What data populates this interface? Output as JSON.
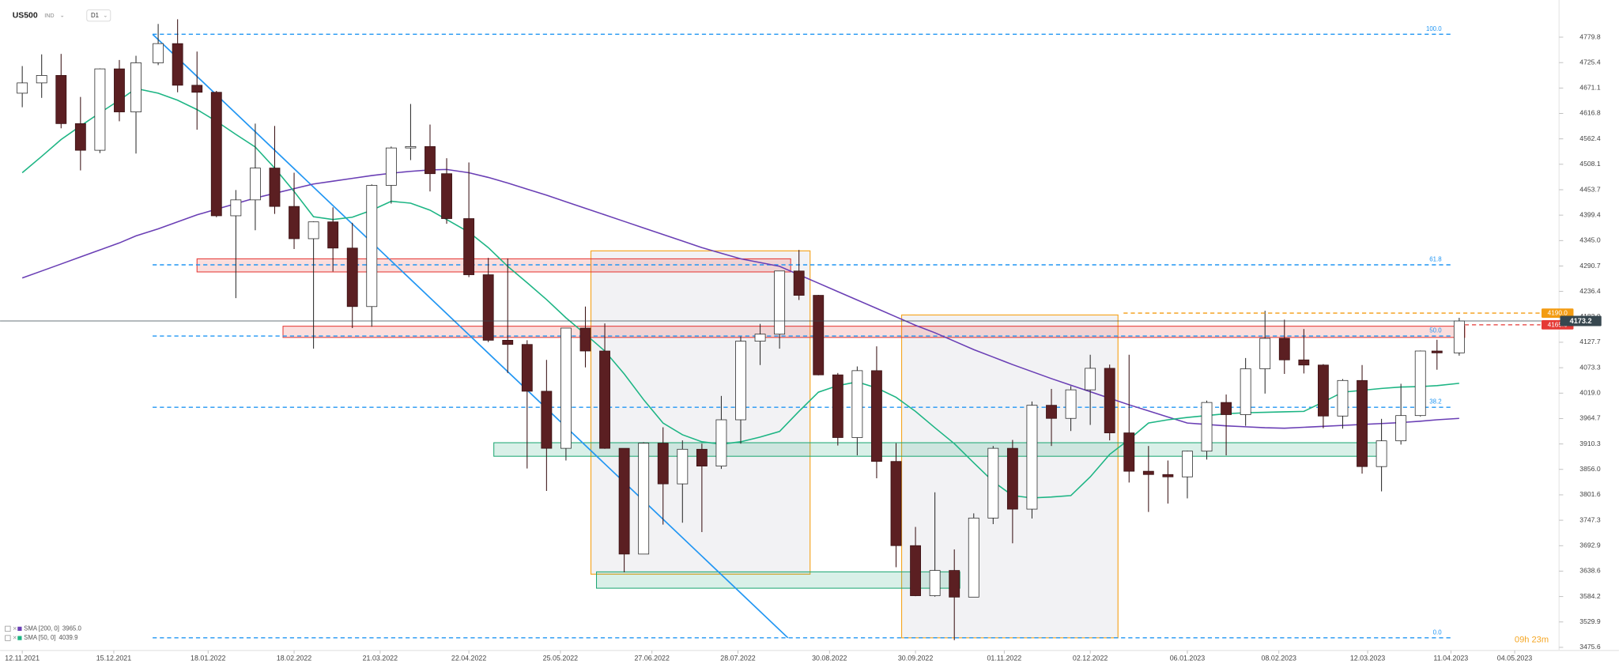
{
  "chart_data": {
    "type": "candlestick",
    "title": "US500",
    "instrument_tag": "IND",
    "timeframe": "D1",
    "countdown": "09h 23m",
    "xlim": [
      "04.11.2021",
      "20.05.2023"
    ],
    "ylim": [
      3469.0,
      4859.2
    ],
    "xticks": [
      "12.11.2021",
      "15.12.2021",
      "18.01.2022",
      "18.02.2022",
      "21.03.2022",
      "22.04.2022",
      "25.05.2022",
      "27.06.2022",
      "28.07.2022",
      "30.08.2022",
      "30.09.2022",
      "01.11.2022",
      "02.12.2022",
      "06.01.2023",
      "08.02.2023",
      "12.03.2023",
      "11.04.2023",
      "04.05.2023"
    ],
    "yticks": [
      4779.8,
      4725.4,
      4671.1,
      4616.8,
      4562.4,
      4508.1,
      4453.7,
      4399.4,
      {
        "value": 4345,
        "label": "4345.0"
      },
      4290.7,
      4236.4,
      {
        "value": 4182,
        "label": "4182.0"
      },
      4127.7,
      4073.3,
      {
        "value": 4019,
        "label": "4019.0"
      },
      3964.7,
      3910.3,
      {
        "value": 3856,
        "label": "3856.0"
      },
      3801.6,
      3747.3,
      3692.9,
      3638.6,
      3584.2,
      3529.9,
      3475.6
    ],
    "candle_colors": {
      "up_fill": "#ffffff",
      "up_stroke": "#2b2b2b",
      "down_fill": "#5b1f22",
      "down_stroke": "#3a1214"
    },
    "x": [
      "12.11.2021",
      "19.11.2021",
      "26.11.2021",
      "03.12.2021",
      "10.12.2021",
      "17.12.2021",
      "23.12.2021",
      "31.12.2021",
      "07.01.2022",
      "14.01.2022",
      "21.01.2022",
      "28.01.2022",
      "04.02.2022",
      "11.02.2022",
      "18.02.2022",
      "25.02.2022",
      "04.03.2022",
      "11.03.2022",
      "18.03.2022",
      "25.03.2022",
      "01.04.2022",
      "08.04.2022",
      "14.04.2022",
      "22.04.2022",
      "29.04.2022",
      "06.05.2022",
      "13.05.2022",
      "20.05.2022",
      "27.05.2022",
      "03.06.2022",
      "10.06.2022",
      "17.06.2022",
      "24.06.2022",
      "01.07.2022",
      "08.07.2022",
      "15.07.2022",
      "22.07.2022",
      "29.07.2022",
      "05.08.2022",
      "12.08.2022",
      "19.08.2022",
      "26.08.2022",
      "02.09.2022",
      "09.09.2022",
      "16.09.2022",
      "23.09.2022",
      "30.09.2022",
      "07.10.2022",
      "14.10.2022",
      "21.10.2022",
      "28.10.2022",
      "04.11.2022",
      "11.11.2022",
      "18.11.2022",
      "25.11.2022",
      "02.12.2022",
      "09.12.2022",
      "16.12.2022",
      "23.12.2022",
      "30.12.2022",
      "06.01.2023",
      "13.01.2023",
      "20.01.2023",
      "27.01.2023",
      "03.02.2023",
      "10.02.2023",
      "17.02.2023",
      "24.02.2023",
      "03.03.2023",
      "10.03.2023",
      "17.03.2023",
      "24.03.2023",
      "31.03.2023",
      "06.04.2023",
      "14.04.2023"
    ],
    "open": [
      4660,
      4682,
      4698,
      4595,
      4538,
      4712,
      4620,
      4725,
      4766,
      4677,
      4662,
      4398,
      4432,
      4500,
      4418,
      4349,
      4385,
      4329,
      4204,
      4463,
      4543,
      4546,
      4488,
      4392,
      4272,
      4132,
      4123,
      4023,
      3901,
      4158,
      4109,
      3901,
      3675,
      3912,
      3825,
      3899,
      3863,
      3962,
      4130,
      4145,
      4280,
      4228,
      4058,
      3924,
      4067,
      3873,
      3693,
      3586,
      3640,
      3583,
      3752,
      3901,
      3771,
      3993,
      3965,
      4026,
      4072,
      3934,
      3852,
      3845,
      3840,
      3895,
      3999,
      3973,
      4071,
      4136,
      4090,
      4079,
      3970,
      4046,
      3862,
      3917,
      3971,
      4109,
      4105
    ],
    "high": [
      4718,
      4743,
      4744,
      4652,
      4713,
      4731,
      4740,
      4808,
      4818,
      4749,
      4665,
      4453,
      4595,
      4590,
      4490,
      4386,
      4416,
      4383,
      4465,
      4546,
      4637,
      4593,
      4521,
      4512,
      4308,
      4307,
      4132,
      4090,
      4158,
      4204,
      4168,
      3901,
      3914,
      3946,
      3918,
      3911,
      4013,
      4140,
      4167,
      4280,
      4325,
      4229,
      4062,
      4076,
      4119,
      3912,
      3733,
      3807,
      3685,
      3762,
      3906,
      3919,
      4001,
      4028,
      4034,
      4101,
      4080,
      4101,
      3906,
      3875,
      3896,
      4003,
      4016,
      4094,
      4195,
      4176,
      4156,
      4081,
      4049,
      4079,
      3964,
      4039,
      4110,
      4133,
      4180
    ],
    "low": [
      4630,
      4650,
      4585,
      4495,
      4532,
      4600,
      4531,
      4720,
      4662,
      4582,
      4395,
      4222,
      4367,
      4402,
      4327,
      4114,
      4279,
      4158,
      4161,
      4424,
      4517,
      4450,
      4381,
      4267,
      4128,
      4062,
      3858,
      3810,
      3875,
      4074,
      3900,
      3636,
      3675,
      3738,
      3742,
      3722,
      3857,
      3911,
      4079,
      4114,
      4218,
      4057,
      3907,
      3886,
      3837,
      3647,
      3585,
      3584,
      3491,
      3585,
      3739,
      3698,
      3751,
      3906,
      3938,
      3951,
      3918,
      3828,
      3765,
      3783,
      3794,
      3877,
      3886,
      3949,
      4018,
      4060,
      4061,
      3944,
      3943,
      3847,
      3809,
      3909,
      3969,
      4069,
      4099
    ],
    "close": [
      4682,
      4698,
      4595,
      4538,
      4712,
      4620,
      4725,
      4766,
      4677,
      4662,
      4398,
      4432,
      4500,
      4418,
      4349,
      4385,
      4329,
      4204,
      4463,
      4543,
      4546,
      4488,
      4392,
      4272,
      4132,
      4123,
      4023,
      3901,
      4158,
      4109,
      3901,
      3675,
      3912,
      3825,
      3899,
      3863,
      3962,
      4130,
      4145,
      4280,
      4228,
      4058,
      3924,
      4067,
      3873,
      3693,
      3586,
      3640,
      3583,
      3752,
      3901,
      3771,
      3993,
      3965,
      4026,
      4072,
      3934,
      3852,
      3845,
      3840,
      3895,
      3999,
      3973,
      4071,
      4136,
      4090,
      4079,
      3970,
      4046,
      3862,
      3917,
      3971,
      4109,
      4105,
      4173.2
    ],
    "series": [
      {
        "name": "SMA [200, 0]",
        "color": "#6a3fb5",
        "legend_value": {
          "value": 3965,
          "label": "3965.0"
        },
        "values": [
          4265,
          4280,
          4295,
          4310,
          4325,
          4340,
          4355,
          4370,
          4385,
          4400,
          4412,
          4424,
          4436,
          4446,
          4456,
          4466,
          4472,
          4478,
          4484,
          4489,
          4493,
          4496,
          4497,
          4490,
          4480,
          4468,
          4455,
          4442,
          4428,
          4414,
          4400,
          4386,
          4372,
          4358,
          4344,
          4330,
          4318,
          4306,
          4298,
          4290,
          4272,
          4254,
          4236,
          4218,
          4200,
          4182,
          4164,
          4148,
          4130,
          4112,
          4096,
          4080,
          4065,
          4050,
          4036,
          4022,
          4008,
          3994,
          3981,
          3968,
          3955,
          3952,
          3949,
          3947,
          3945,
          3944,
          3946,
          3948,
          3950,
          3952,
          3954,
          3956,
          3959,
          3962,
          3965
        ]
      },
      {
        "name": "SMA [50, 0]",
        "color": "#1db584",
        "legend_value": 4039.9,
        "values": [
          4490,
          4525,
          4561,
          4590,
          4618,
          4645,
          4670,
          4660,
          4645,
          4625,
          4600,
          4572,
          4545,
          4500,
          4450,
          4396,
          4390,
          4395,
          4410,
          4429,
          4425,
          4410,
          4390,
          4363,
          4330,
          4290,
          4255,
          4219,
          4180,
          4145,
          4109,
          4060,
          4005,
          3955,
          3930,
          3915,
          3910,
          3915,
          3925,
          3937,
          3980,
          4021,
          4035,
          4043,
          4030,
          4010,
          3980,
          3945,
          3911,
          3870,
          3830,
          3800,
          3795,
          3797,
          3800,
          3840,
          3888,
          3920,
          3955,
          3962,
          3967,
          3971,
          3975,
          3977,
          3978,
          3979,
          3980,
          4000,
          4021,
          4025,
          4029,
          4032,
          4033,
          4035,
          4039.9
        ]
      }
    ],
    "fibonacci": {
      "high": 4786,
      "low": 3496,
      "from": "29.12.2021",
      "to": "11.04.2023",
      "color": "#2196f3",
      "levels": [
        {
          "value": 100,
          "label": "100.0"
        },
        {
          "value": 61.8,
          "label": "61.8"
        },
        {
          "value": 50,
          "label": "50.0"
        },
        {
          "value": 38.2,
          "label": "38.2"
        },
        {
          "value": 0,
          "label": "0.0"
        }
      ]
    },
    "trendline": {
      "from": "29.12.2021",
      "to": "15.08.2022",
      "start": 4786,
      "end": 3496,
      "color": "#2196f3"
    },
    "zones": [
      {
        "low": 4278,
        "high": 4306,
        "from": "14.01.2022",
        "to": "16.08.2022",
        "color": "#e53935"
      },
      {
        "low": 4138,
        "high": 4162,
        "from": "14.02.2022",
        "to": "16.04.2023",
        "color": "#e53935"
      },
      {
        "low": 3884,
        "high": 3913,
        "from": "01.05.2022",
        "to": "16.03.2023",
        "color": "#1fa774"
      },
      {
        "low": 3602,
        "high": 3637,
        "from": "07.06.2022",
        "to": "16.10.2022",
        "color": "#1fa774"
      }
    ],
    "boxes": [
      {
        "low": 3632,
        "high": 4323,
        "from": "05.06.2022",
        "to": "23.08.2022",
        "color": "#f5a623"
      },
      {
        "low": 3496,
        "high": 4186,
        "from": "25.09.2022",
        "to": "12.12.2022",
        "color": "#f5a623"
      }
    ],
    "alerts": [
      {
        "value": 4190,
        "label": "4190.0",
        "from": "14.12.2022",
        "color": "#f39c12"
      },
      {
        "value": 4165,
        "label": "4165.0",
        "from": "16.04.2023",
        "color": "#e53935"
      }
    ],
    "last_price": 4173.2
  }
}
